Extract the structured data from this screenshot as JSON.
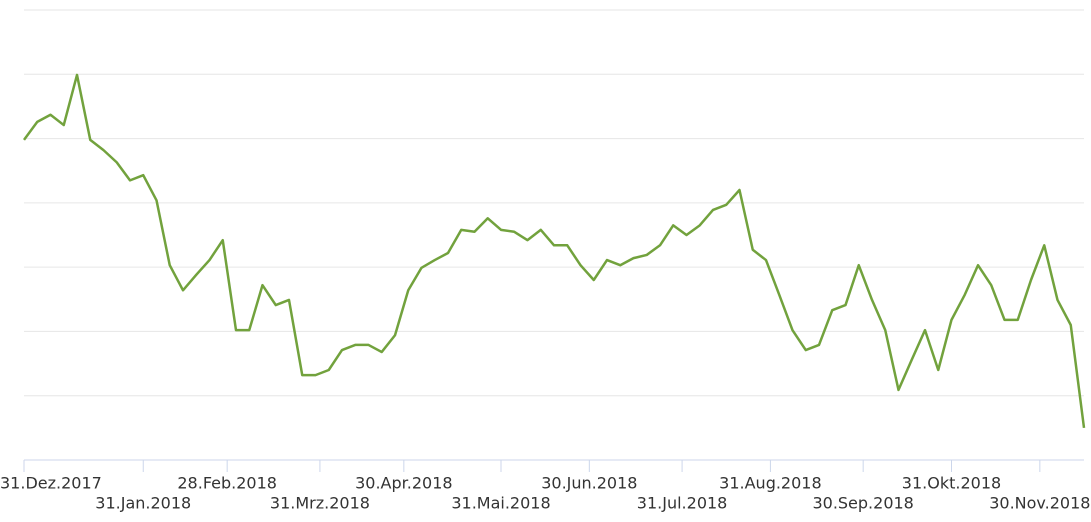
{
  "chart_data": {
    "type": "line",
    "color": "#72a23d",
    "grid": true,
    "xlim": [
      0,
      240
    ],
    "ylim": [
      0,
      7
    ],
    "yticks": [
      0,
      1,
      2,
      3,
      4,
      5,
      6,
      7
    ],
    "xticks": [
      {
        "value": 0,
        "label": "31.Dez.2017"
      },
      {
        "value": 27,
        "label": "31.Jan.2018"
      },
      {
        "value": 46,
        "label": "28.Feb.2018"
      },
      {
        "value": 67,
        "label": "31.Mrz.2018"
      },
      {
        "value": 86,
        "label": "30.Apr.2018"
      },
      {
        "value": 108,
        "label": "31.Mai.2018"
      },
      {
        "value": 128,
        "label": "30.Jun.2018"
      },
      {
        "value": 149,
        "label": "31.Jul.2018"
      },
      {
        "value": 169,
        "label": "31.Aug.2018"
      },
      {
        "value": 190,
        "label": "30.Sep.2018"
      },
      {
        "value": 210,
        "label": "31.Okt.2018"
      },
      {
        "value": 230,
        "label": "30.Nov.2018"
      }
    ],
    "x": [
      0,
      3,
      6,
      9,
      12,
      15,
      18,
      21,
      24,
      27,
      30,
      33,
      36,
      39,
      42,
      45,
      48,
      51,
      54,
      57,
      60,
      63,
      66,
      69,
      72,
      75,
      78,
      81,
      84,
      87,
      90,
      93,
      96,
      99,
      102,
      105,
      108,
      111,
      114,
      117,
      120,
      123,
      126,
      129,
      132,
      135,
      138,
      141,
      144,
      147,
      150,
      153,
      156,
      159,
      162,
      165,
      168,
      171,
      174,
      177,
      180,
      183,
      186,
      189,
      192,
      195,
      198,
      201,
      204,
      207,
      210,
      213,
      216,
      219,
      222,
      225,
      228,
      231,
      234,
      237,
      240
    ],
    "values": [
      4.98,
      5.26,
      5.37,
      5.21,
      5.99,
      4.98,
      4.82,
      4.63,
      4.35,
      4.43,
      4.04,
      3.03,
      2.64,
      2.88,
      3.11,
      3.42,
      2.02,
      2.02,
      2.72,
      2.41,
      2.49,
      1.32,
      1.32,
      1.4,
      1.71,
      1.79,
      1.79,
      1.68,
      1.94,
      2.64,
      2.99,
      3.11,
      3.22,
      3.58,
      3.55,
      3.76,
      3.58,
      3.55,
      3.42,
      3.58,
      3.34,
      3.34,
      3.03,
      2.8,
      3.11,
      3.03,
      3.14,
      3.19,
      3.34,
      3.65,
      3.5,
      3.65,
      3.89,
      3.97,
      4.2,
      3.27,
      3.11,
      2.57,
      2.02,
      1.71,
      1.79,
      2.33,
      2.41,
      3.03,
      2.49,
      2.02,
      1.09,
      1.56,
      2.02,
      1.4,
      2.18,
      2.57,
      3.03,
      2.72,
      2.18,
      2.18,
      2.8,
      3.34,
      2.49,
      2.1,
      0.5
    ]
  }
}
